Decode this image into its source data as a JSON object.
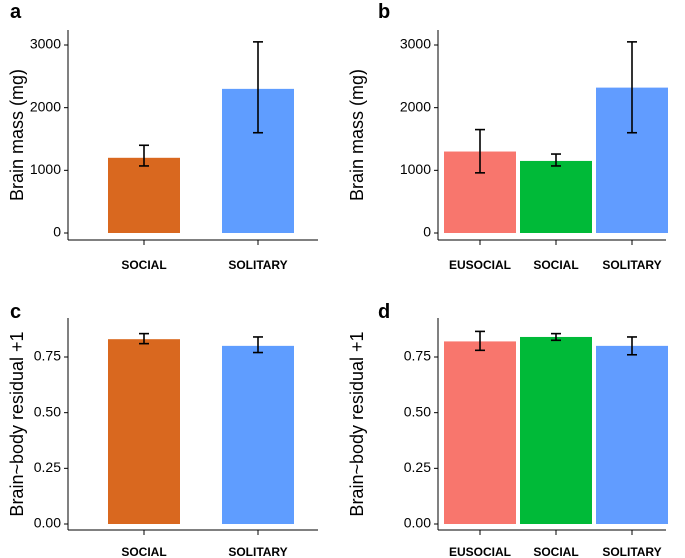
{
  "chart_data": [
    {
      "panel": "a",
      "type": "bar",
      "ylabel": "Brain mass (mg)",
      "ylim": [
        0,
        3200
      ],
      "yticks": [
        0,
        1000,
        2000,
        3000
      ],
      "ytick_labels": [
        "0",
        "1000",
        "2000",
        "3000"
      ],
      "categories": [
        "SOCIAL",
        "SOLITARY"
      ],
      "values": [
        1200,
        2300
      ],
      "err_low": [
        1070,
        1600
      ],
      "err_high": [
        1400,
        3050
      ],
      "colors": [
        "#D9681F",
        "#5F9DFF"
      ]
    },
    {
      "panel": "b",
      "type": "bar",
      "ylabel": "Brain mass (mg)",
      "ylim": [
        0,
        3200
      ],
      "yticks": [
        0,
        1000,
        2000,
        3000
      ],
      "ytick_labels": [
        "0",
        "1000",
        "2000",
        "3000"
      ],
      "categories": [
        "EUSOCIAL",
        "SOCIAL",
        "SOLITARY"
      ],
      "values": [
        1300,
        1150,
        2320
      ],
      "err_low": [
        960,
        1070,
        1600
      ],
      "err_high": [
        1650,
        1260,
        3050
      ],
      "colors": [
        "#F8766D",
        "#00BA38",
        "#619CFF"
      ]
    },
    {
      "panel": "c",
      "type": "bar",
      "ylabel": "Brain~body residual +1",
      "ylim": [
        0,
        0.9
      ],
      "yticks": [
        0,
        0.25,
        0.5,
        0.75
      ],
      "ytick_labels": [
        "0.00",
        "0.25",
        "0.50",
        "0.75"
      ],
      "categories": [
        "SOCIAL",
        "SOLITARY"
      ],
      "values": [
        0.83,
        0.8
      ],
      "err_low": [
        0.81,
        0.77
      ],
      "err_high": [
        0.855,
        0.84
      ],
      "colors": [
        "#D9681F",
        "#5F9DFF"
      ]
    },
    {
      "panel": "d",
      "type": "bar",
      "ylabel": "Brain~body residual +1",
      "ylim": [
        0,
        0.9
      ],
      "yticks": [
        0,
        0.25,
        0.5,
        0.75
      ],
      "ytick_labels": [
        "0.00",
        "0.25",
        "0.50",
        "0.75"
      ],
      "categories": [
        "EUSOCIAL",
        "SOCIAL",
        "SOLITARY"
      ],
      "values": [
        0.82,
        0.84,
        0.8
      ],
      "err_low": [
        0.78,
        0.825,
        0.76
      ],
      "err_high": [
        0.865,
        0.855,
        0.84
      ],
      "colors": [
        "#F8766D",
        "#00BA38",
        "#619CFF"
      ]
    }
  ]
}
